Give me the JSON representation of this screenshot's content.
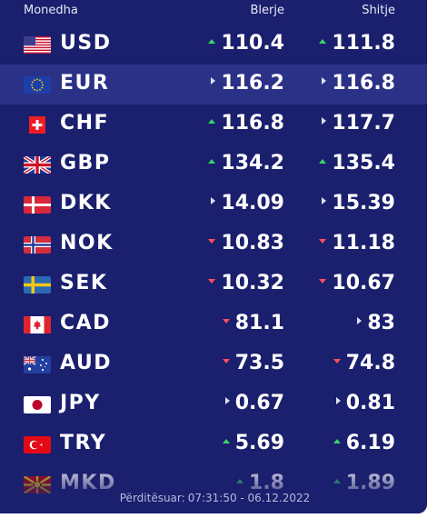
{
  "header": {
    "name_label": "Monedha",
    "buy_label": "Blerje",
    "sell_label": "Shitje"
  },
  "colors": {
    "panel_bg": "#1a1f6e",
    "highlight_row": "#2b3187",
    "up": "#39d36b",
    "down": "#ff4d5e",
    "same": "#dfe1f0"
  },
  "rows": [
    {
      "code": "USD",
      "flag": "us-flag-icon",
      "buy": "110.4",
      "buy_trend": "up",
      "sell": "111.8",
      "sell_trend": "up"
    },
    {
      "code": "EUR",
      "flag": "eu-flag-icon",
      "buy": "116.2",
      "buy_trend": "same",
      "sell": "116.8",
      "sell_trend": "same",
      "highlighted": true
    },
    {
      "code": "CHF",
      "flag": "ch-flag-icon",
      "buy": "116.8",
      "buy_trend": "up",
      "sell": "117.7",
      "sell_trend": "same"
    },
    {
      "code": "GBP",
      "flag": "gb-flag-icon",
      "buy": "134.2",
      "buy_trend": "up",
      "sell": "135.4",
      "sell_trend": "up"
    },
    {
      "code": "DKK",
      "flag": "dk-flag-icon",
      "buy": "14.09",
      "buy_trend": "same",
      "sell": "15.39",
      "sell_trend": "same"
    },
    {
      "code": "NOK",
      "flag": "no-flag-icon",
      "buy": "10.83",
      "buy_trend": "down",
      "sell": "11.18",
      "sell_trend": "down"
    },
    {
      "code": "SEK",
      "flag": "se-flag-icon",
      "buy": "10.32",
      "buy_trend": "down",
      "sell": "10.67",
      "sell_trend": "down"
    },
    {
      "code": "CAD",
      "flag": "ca-flag-icon",
      "buy": "81.1",
      "buy_trend": "down",
      "sell": "83",
      "sell_trend": "same"
    },
    {
      "code": "AUD",
      "flag": "au-flag-icon",
      "buy": "73.5",
      "buy_trend": "down",
      "sell": "74.8",
      "sell_trend": "down"
    },
    {
      "code": "JPY",
      "flag": "jp-flag-icon",
      "buy": "0.67",
      "buy_trend": "same",
      "sell": "0.81",
      "sell_trend": "same"
    },
    {
      "code": "TRY",
      "flag": "tr-flag-icon",
      "buy": "5.69",
      "buy_trend": "up",
      "sell": "6.19",
      "sell_trend": "up"
    },
    {
      "code": "MKD",
      "flag": "mk-flag-icon",
      "buy": "1.8",
      "buy_trend": "up",
      "sell": "1.89",
      "sell_trend": "up"
    }
  ],
  "footer": {
    "updated_label": "Përditësuar:",
    "updated_value": "07:31:50 - 06.12.2022"
  }
}
